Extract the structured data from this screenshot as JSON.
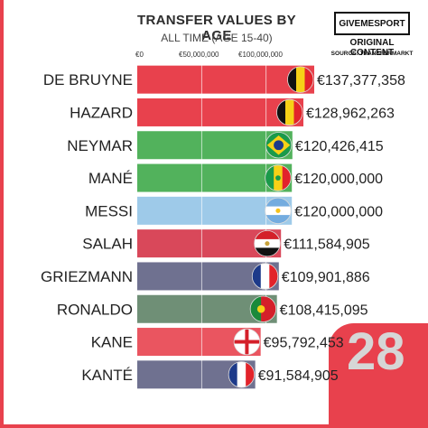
{
  "header": {
    "title": "TRANSFER VALUES BY AGE",
    "subtitle": "ALL TIME (AGE 15-40)"
  },
  "brand": {
    "name": "GIVEMESPORT",
    "tagline": "ORIGINAL CONTENT",
    "source": "SOURCE: TRANSFERMARKT"
  },
  "counter": {
    "value": "28"
  },
  "colors": {
    "accent": "#e8414d",
    "grid": "#ffffff"
  },
  "chart_data": {
    "type": "bar",
    "orientation": "horizontal",
    "title": "TRANSFER VALUES BY AGE",
    "subtitle": "ALL TIME (AGE 15-40)",
    "xlim": [
      0,
      137377358
    ],
    "ticks": [
      {
        "value": 0,
        "label": "€0"
      },
      {
        "value": 50000000,
        "label": "€50,000,000"
      },
      {
        "value": 100000000,
        "label": "€100,000,000"
      }
    ],
    "grid": true,
    "categories": [
      "DE BRUYNE",
      "HAZARD",
      "NEYMAR",
      "MANÉ",
      "MESSI",
      "SALAH",
      "GRIEZMANN",
      "RONALDO",
      "KANE",
      "KANTÉ"
    ],
    "values": [
      137377358,
      128962263,
      120426415,
      120000000,
      120000000,
      111584905,
      109901886,
      108415095,
      95792453,
      91584905
    ],
    "value_labels": [
      "€137,377,358",
      "€128,962,263",
      "€120,426,415",
      "€120,000,000",
      "€120,000,000",
      "€111,584,905",
      "€109,901,886",
      "€108,415,095",
      "€95,792,453",
      "€91,584,905"
    ],
    "bar_colors": [
      "#e8414d",
      "#e8414d",
      "#52b25c",
      "#52b25c",
      "#9ecae9",
      "#d9485a",
      "#6f7190",
      "#6f8f76",
      "#ea5560",
      "#6f7190"
    ],
    "flags": [
      "belgium",
      "belgium",
      "brazil",
      "senegal",
      "argentina",
      "egypt",
      "france",
      "portugal",
      "england",
      "france"
    ]
  }
}
